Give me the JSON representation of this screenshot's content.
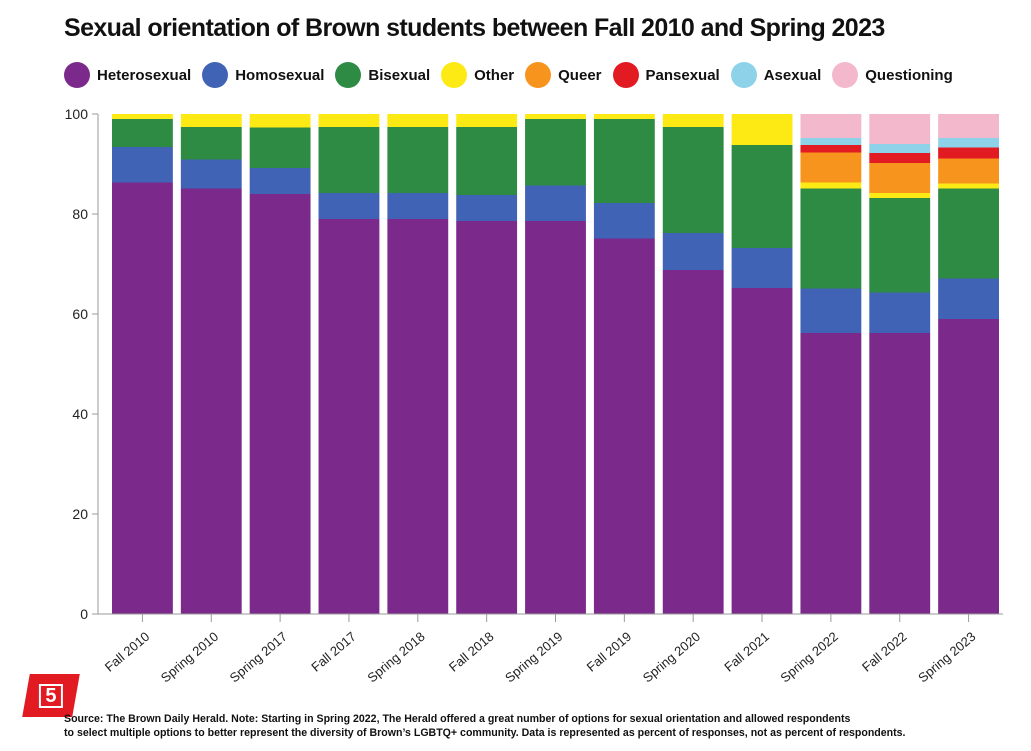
{
  "chart_data": {
    "type": "stacked-bar",
    "title": "Sexual orientation of Brown students between Fall 2010 and Spring 2023",
    "xlabel": "",
    "ylabel": "",
    "ylim": [
      0,
      100
    ],
    "yticks": [
      "0",
      "20",
      "40",
      "60",
      "80",
      "100"
    ],
    "categories": [
      "Fall 2010",
      "Spring 2010",
      "Spring 2017",
      "Fall 2017",
      "Spring 2018",
      "Fall 2018",
      "Spring 2019",
      "Fall 2019",
      "Spring 2020",
      "Fall 2021",
      "Spring 2022",
      "Fall 2022",
      "Spring 2023"
    ],
    "series": [
      {
        "name": "Heterosexual",
        "color": "#7b2a8c",
        "values": [
          86.3,
          85.1,
          84.0,
          79.0,
          79.0,
          78.6,
          78.6,
          75.1,
          68.8,
          65.2,
          56.2,
          56.2,
          59.0
        ]
      },
      {
        "name": "Homosexual",
        "color": "#4063b5",
        "values": [
          7.1,
          5.8,
          5.2,
          5.2,
          5.2,
          5.2,
          7.1,
          7.1,
          7.4,
          8.0,
          8.9,
          8.1,
          8.1
        ]
      },
      {
        "name": "Bisexual",
        "color": "#2e8b43",
        "values": [
          5.6,
          6.5,
          8.1,
          13.2,
          13.2,
          13.6,
          13.3,
          16.8,
          21.2,
          20.6,
          20.0,
          18.9,
          18.0
        ]
      },
      {
        "name": "Other",
        "color": "#fdea14",
        "values": [
          1.0,
          2.6,
          2.7,
          2.6,
          2.6,
          2.6,
          1.0,
          1.0,
          2.6,
          6.2,
          1.2,
          1.0,
          1.0
        ]
      },
      {
        "name": "Queer",
        "color": "#f7941e",
        "values": [
          0,
          0,
          0,
          0,
          0,
          0,
          0,
          0,
          0,
          0,
          6.0,
          6.0,
          5.0
        ]
      },
      {
        "name": "Pansexual",
        "color": "#e21a22",
        "values": [
          0,
          0,
          0,
          0,
          0,
          0,
          0,
          0,
          0,
          0,
          1.5,
          2.0,
          2.2
        ]
      },
      {
        "name": "Asexual",
        "color": "#8ed2ea",
        "values": [
          0,
          0,
          0,
          0,
          0,
          0,
          0,
          0,
          0,
          0,
          1.4,
          1.8,
          1.9
        ]
      },
      {
        "name": "Questioning",
        "color": "#f4b8cc",
        "values": [
          0,
          0,
          0,
          0,
          0,
          0,
          0,
          0,
          0,
          0,
          4.8,
          6.0,
          4.8
        ]
      }
    ]
  },
  "source_note": {
    "line1": "Source: The Brown Daily Herald. Note: Starting in Spring 2022, The Herald offered a great number of options for sexual orientation and allowed respondents",
    "line2": "to select multiple options to better represent the diversity of Brown’s LGBTQ+ community. Data is represented as percent of responses, not as percent of respondents."
  },
  "badge": {
    "label": "5",
    "color": "#e21a22"
  }
}
